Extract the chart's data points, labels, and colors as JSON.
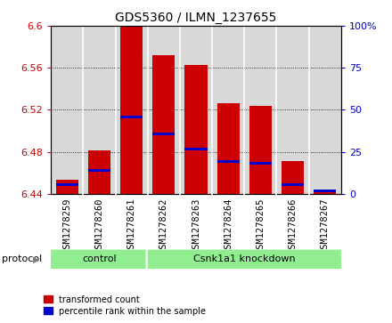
{
  "title": "GDS5360 / ILMN_1237655",
  "samples": [
    "GSM1278259",
    "GSM1278260",
    "GSM1278261",
    "GSM1278262",
    "GSM1278263",
    "GSM1278264",
    "GSM1278265",
    "GSM1278266",
    "GSM1278267"
  ],
  "bar_tops": [
    6.453,
    6.481,
    6.6,
    6.572,
    6.563,
    6.526,
    6.524,
    6.471,
    6.444
  ],
  "bar_bottom": 6.44,
  "percentile_values": [
    6.449,
    6.462,
    6.513,
    6.497,
    6.483,
    6.471,
    6.469,
    6.449,
    6.443
  ],
  "bar_color": "#cc0000",
  "percentile_color": "#0000cc",
  "ylim": [
    6.44,
    6.6
  ],
  "yticks_left": [
    6.44,
    6.48,
    6.52,
    6.56,
    6.6
  ],
  "yticks_right": [
    0,
    25,
    50,
    75,
    100
  ],
  "control_count": 3,
  "protocol_label": "protocol",
  "group_labels": [
    "control",
    "Csnk1a1 knockdown"
  ],
  "legend_items": [
    {
      "label": "transformed count",
      "color": "#cc0000"
    },
    {
      "label": "percentile rank within the sample",
      "color": "#0000cc"
    }
  ],
  "bar_width": 0.7,
  "tick_fontsize": 8,
  "title_fontsize": 10,
  "label_fontsize": 7.5,
  "left_tick_color": "#cc0000",
  "right_tick_color": "#0000cc",
  "bg_color_plot": "#d8d8d8",
  "bg_color_fig": "#ffffff",
  "green_color": "#90ee90",
  "separator_color": "#ffffff"
}
